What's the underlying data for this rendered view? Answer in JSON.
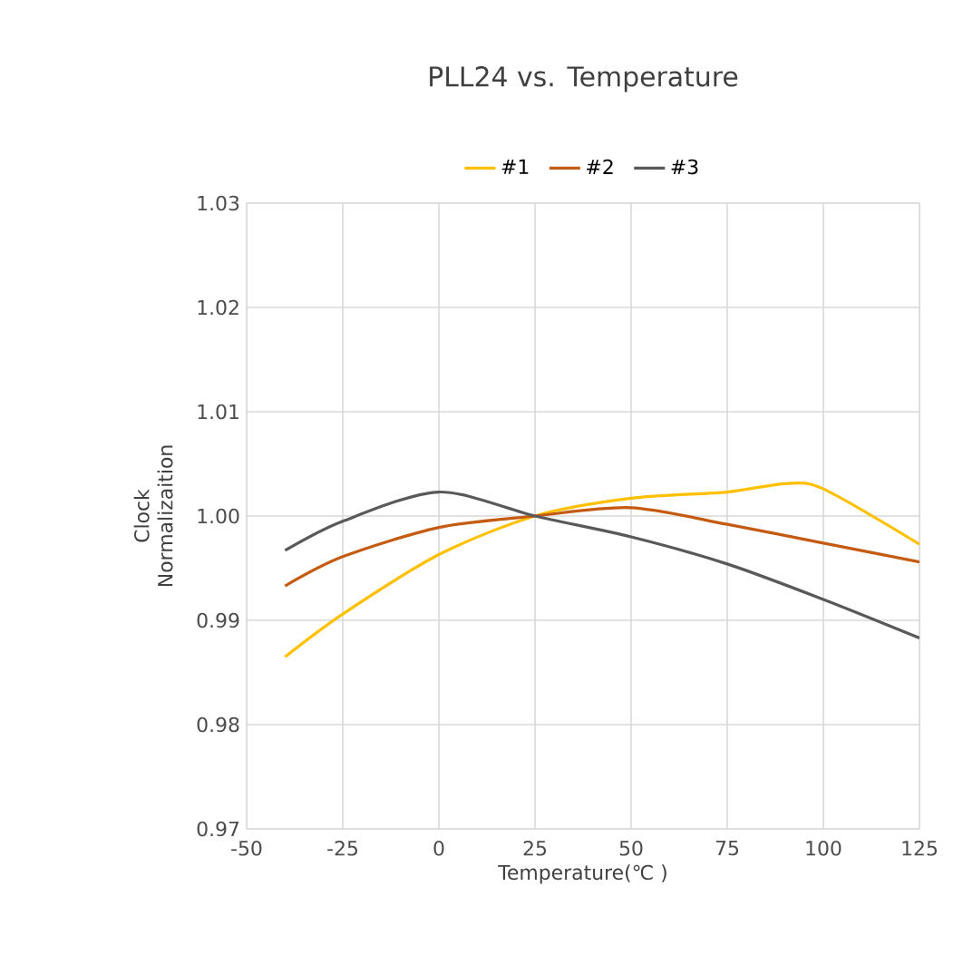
{
  "chart_data": {
    "type": "line",
    "title": "PLL24 vs. Temperature",
    "xlabel": "Temperature(℃ )",
    "ylabel": "Clock Normalizaition",
    "x": [
      -40,
      -25,
      0,
      25,
      50,
      75,
      90,
      100,
      125
    ],
    "series": [
      {
        "name": "#1",
        "color": "#ffc000",
        "values": [
          0.9865,
          0.9906,
          0.9963,
          1.0,
          1.0017,
          1.0023,
          1.0031,
          1.0026,
          0.9973
        ]
      },
      {
        "name": "#2",
        "color": "#c55a11",
        "values": [
          0.9933,
          0.9961,
          0.9989,
          1.0,
          1.0008,
          0.9992,
          null,
          0.9974,
          0.9956
        ]
      },
      {
        "name": "#3",
        "color": "#595959",
        "values": [
          0.9967,
          0.9995,
          1.0023,
          1.0,
          0.998,
          0.9954,
          null,
          0.992,
          0.9883
        ]
      }
    ],
    "xlim": [
      -50,
      125
    ],
    "xticks": [
      -50,
      -25,
      0,
      25,
      50,
      75,
      100,
      125
    ],
    "ylim": [
      0.97,
      1.03
    ],
    "yticks": [
      {
        "value": 0.97,
        "label": "0.97"
      },
      {
        "value": 0.98,
        "label": "0.98"
      },
      {
        "value": 0.99,
        "label": "0.99"
      },
      {
        "value": 1.0,
        "label": "1.00"
      },
      {
        "value": 1.01,
        "label": "1.01"
      },
      {
        "value": 1.02,
        "label": "1.02"
      },
      {
        "value": 1.03,
        "label": "1.03"
      }
    ],
    "grid": true,
    "legend": "top",
    "marker": "none",
    "line_style": "solid"
  }
}
